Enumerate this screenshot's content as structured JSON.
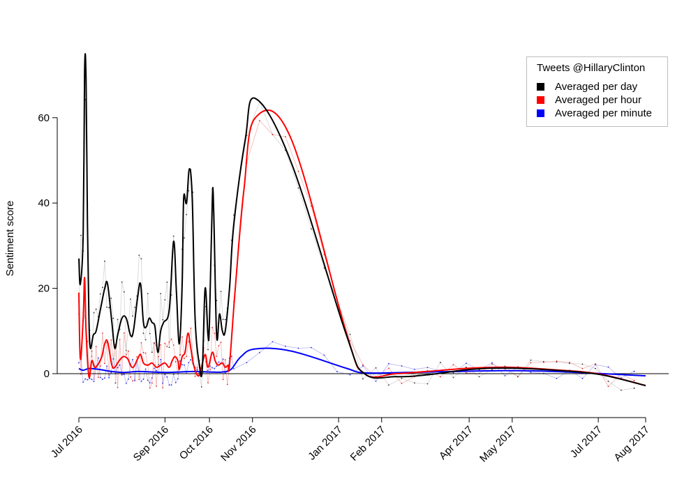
{
  "chart_data": {
    "type": "line",
    "title": "",
    "xlabel": "",
    "ylabel": "Sentiment score",
    "ylim": [
      -10,
      80
    ],
    "yticks": [
      0,
      20,
      40,
      60
    ],
    "xlim": [
      "2016-07-02",
      "2017-08-01"
    ],
    "x_axis_type": "date",
    "xticks": [
      {
        "label": "Jul 2016",
        "date": "2016-07-02"
      },
      {
        "label": "Sep 2016",
        "date": "2016-08-31"
      },
      {
        "label": "Oct 2016",
        "date": "2016-10-01"
      },
      {
        "label": "Nov 2016",
        "date": "2016-10-31"
      },
      {
        "label": "Jan 2017",
        "date": "2016-12-30"
      },
      {
        "label": "Feb 2017",
        "date": "2017-01-29"
      },
      {
        "label": "Apr 2017",
        "date": "2017-03-31"
      },
      {
        "label": "May 2017",
        "date": "2017-04-30"
      },
      {
        "label": "Jul 2017",
        "date": "2017-06-29"
      },
      {
        "label": "Aug 2017",
        "date": "2017-08-01"
      }
    ],
    "zero_line": true,
    "grid": false,
    "legend": {
      "title": "Tweets @HillaryClinton",
      "position": "top-right",
      "items": [
        {
          "label": "Averaged per day",
          "color": "#000000"
        },
        {
          "label": "Averaged per hour",
          "color": "#ff0000"
        },
        {
          "label": "Averaged per minute",
          "color": "#0000ff"
        }
      ]
    },
    "series": [
      {
        "name": "Averaged per day",
        "color": "#000000",
        "points": [
          [
            "2016-07-02",
            27
          ],
          [
            "2016-07-03",
            21
          ],
          [
            "2016-07-05",
            33
          ],
          [
            "2016-07-06",
            71
          ],
          [
            "2016-07-07",
            69
          ],
          [
            "2016-07-08",
            35
          ],
          [
            "2016-07-09",
            13
          ],
          [
            "2016-07-10",
            6
          ],
          [
            "2016-07-12",
            9
          ],
          [
            "2016-07-14",
            10
          ],
          [
            "2016-07-17",
            15
          ],
          [
            "2016-07-20",
            20
          ],
          [
            "2016-07-22",
            21
          ],
          [
            "2016-07-25",
            12
          ],
          [
            "2016-07-27",
            6
          ],
          [
            "2016-07-29",
            9
          ],
          [
            "2016-08-01",
            13
          ],
          [
            "2016-08-04",
            13
          ],
          [
            "2016-08-07",
            9
          ],
          [
            "2016-08-09",
            10
          ],
          [
            "2016-08-12",
            18
          ],
          [
            "2016-08-14",
            21
          ],
          [
            "2016-08-16",
            12
          ],
          [
            "2016-08-18",
            11
          ],
          [
            "2016-08-20",
            13
          ],
          [
            "2016-08-22",
            12
          ],
          [
            "2016-08-24",
            11
          ],
          [
            "2016-08-26",
            5
          ],
          [
            "2016-08-28",
            10
          ],
          [
            "2016-08-30",
            12
          ],
          [
            "2016-09-03",
            15
          ],
          [
            "2016-09-06",
            31
          ],
          [
            "2016-09-08",
            19
          ],
          [
            "2016-09-10",
            7
          ],
          [
            "2016-09-12",
            21
          ],
          [
            "2016-09-13",
            41
          ],
          [
            "2016-09-15",
            40
          ],
          [
            "2016-09-17",
            48
          ],
          [
            "2016-09-19",
            41
          ],
          [
            "2016-09-21",
            13
          ],
          [
            "2016-09-24",
            2
          ],
          [
            "2016-09-26",
            1
          ],
          [
            "2016-09-28",
            20
          ],
          [
            "2016-09-30",
            9
          ],
          [
            "2016-10-01",
            12
          ],
          [
            "2016-10-03",
            41
          ],
          [
            "2016-10-04",
            38
          ],
          [
            "2016-10-06",
            9
          ],
          [
            "2016-10-08",
            14
          ],
          [
            "2016-10-10",
            10
          ],
          [
            "2016-10-12",
            10
          ],
          [
            "2016-10-15",
            20
          ],
          [
            "2016-10-18",
            35
          ],
          [
            "2016-10-26",
            55
          ],
          [
            "2016-11-02",
            64.5
          ],
          [
            "2016-11-27",
            49.5
          ],
          [
            "2017-01-04",
            9.5
          ],
          [
            "2017-01-17",
            0
          ],
          [
            "2017-02-08",
            -0.7
          ],
          [
            "2017-03-01",
            -0.3
          ],
          [
            "2017-04-01",
            1
          ],
          [
            "2017-04-27",
            1.3
          ],
          [
            "2017-05-30",
            0.8
          ],
          [
            "2017-06-30",
            -0.2
          ],
          [
            "2017-08-01",
            -2.8
          ]
        ]
      },
      {
        "name": "Averaged per hour",
        "color": "#ff0000",
        "points": [
          [
            "2016-07-02",
            19
          ],
          [
            "2016-07-03",
            3.5
          ],
          [
            "2016-07-05",
            13
          ],
          [
            "2016-07-06",
            22.5
          ],
          [
            "2016-07-07",
            10
          ],
          [
            "2016-07-09",
            -0.7
          ],
          [
            "2016-07-11",
            3
          ],
          [
            "2016-07-13",
            1.5
          ],
          [
            "2016-07-15",
            2
          ],
          [
            "2016-07-18",
            4
          ],
          [
            "2016-07-20",
            7
          ],
          [
            "2016-07-22",
            7.5
          ],
          [
            "2016-07-25",
            2
          ],
          [
            "2016-07-27",
            1.5
          ],
          [
            "2016-07-30",
            3
          ],
          [
            "2016-08-02",
            4
          ],
          [
            "2016-08-05",
            3.5
          ],
          [
            "2016-08-07",
            2
          ],
          [
            "2016-08-09",
            1.5
          ],
          [
            "2016-08-12",
            3.5
          ],
          [
            "2016-08-14",
            4.5
          ],
          [
            "2016-08-16",
            2.5
          ],
          [
            "2016-08-19",
            2
          ],
          [
            "2016-08-22",
            2.5
          ],
          [
            "2016-08-25",
            1.5
          ],
          [
            "2016-08-28",
            2
          ],
          [
            "2016-08-31",
            2.5
          ],
          [
            "2016-09-03",
            1.5
          ],
          [
            "2016-09-05",
            3
          ],
          [
            "2016-09-07",
            4
          ],
          [
            "2016-09-09",
            3
          ],
          [
            "2016-09-10",
            1
          ],
          [
            "2016-09-12",
            4
          ],
          [
            "2016-09-14",
            5
          ],
          [
            "2016-09-16",
            9.5
          ],
          [
            "2016-09-18",
            6
          ],
          [
            "2016-09-20",
            2
          ],
          [
            "2016-09-23",
            -0.5
          ],
          [
            "2016-09-25",
            1
          ],
          [
            "2016-09-28",
            4.5
          ],
          [
            "2016-09-30",
            1.5
          ],
          [
            "2016-10-03",
            5
          ],
          [
            "2016-10-05",
            3
          ],
          [
            "2016-10-07",
            2
          ],
          [
            "2016-10-10",
            2.5
          ],
          [
            "2016-10-12",
            1.5
          ],
          [
            "2016-10-14",
            2
          ],
          [
            "2016-10-15",
            2
          ],
          [
            "2016-10-19",
            20
          ],
          [
            "2016-10-25",
            43
          ],
          [
            "2016-11-02",
            60
          ],
          [
            "2016-11-27",
            55
          ],
          [
            "2017-01-04",
            10
          ],
          [
            "2017-01-17",
            0
          ],
          [
            "2017-02-08",
            0
          ],
          [
            "2017-03-01",
            0.5
          ],
          [
            "2017-04-01",
            1.3
          ],
          [
            "2017-04-27",
            1.5
          ],
          [
            "2017-05-30",
            0.9
          ],
          [
            "2017-06-30",
            -0.1
          ],
          [
            "2017-08-01",
            -2.8
          ]
        ]
      },
      {
        "name": "Averaged per minute",
        "color": "#0000ff",
        "points": [
          [
            "2016-07-02",
            1.2
          ],
          [
            "2016-07-05",
            0.8
          ],
          [
            "2016-07-09",
            1.2
          ],
          [
            "2016-07-16",
            1
          ],
          [
            "2016-07-25",
            0.5
          ],
          [
            "2016-08-02",
            0.3
          ],
          [
            "2016-08-12",
            0.5
          ],
          [
            "2016-08-22",
            0.4
          ],
          [
            "2016-09-01",
            0.3
          ],
          [
            "2016-09-10",
            0.4
          ],
          [
            "2016-09-20",
            0.5
          ],
          [
            "2016-10-01",
            0.4
          ],
          [
            "2016-10-10",
            0.4
          ],
          [
            "2016-10-16",
            1
          ],
          [
            "2016-10-23",
            4
          ],
          [
            "2016-11-02",
            5.8
          ],
          [
            "2016-11-27",
            5.3
          ],
          [
            "2017-01-04",
            1.3
          ],
          [
            "2017-01-17",
            0.2
          ],
          [
            "2017-02-15",
            0.3
          ],
          [
            "2017-03-20",
            0.5
          ],
          [
            "2017-04-20",
            0.7
          ],
          [
            "2017-05-20",
            0.6
          ],
          [
            "2017-06-20",
            0.2
          ],
          [
            "2017-08-01",
            -0.5
          ]
        ]
      }
    ]
  }
}
